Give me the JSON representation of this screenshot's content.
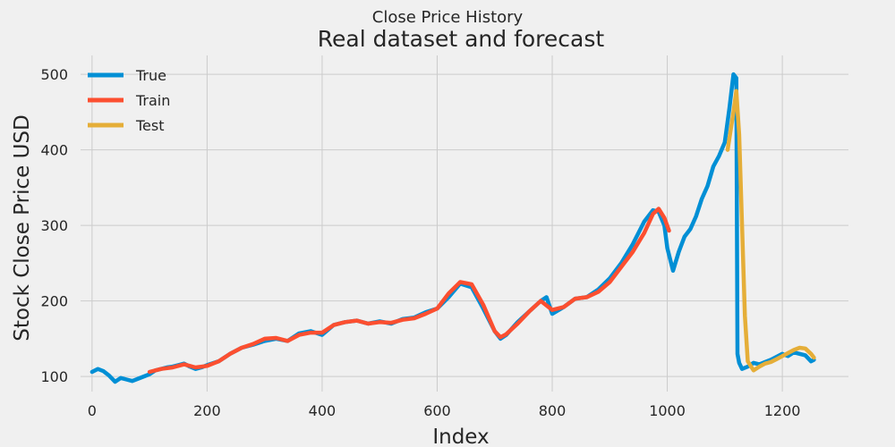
{
  "figure": {
    "suptitle": "Close Price History",
    "title": "Real dataset and forecast"
  },
  "colors": {
    "background": "#f0f0f0",
    "grid": "#cbcbcb",
    "true": "#008fd5",
    "train": "#fc4f30",
    "test": "#e5ae38"
  },
  "chart_data": {
    "type": "line",
    "title": "Real dataset and forecast",
    "suptitle": "Close Price History",
    "xlabel": "Index",
    "ylabel": "Stock Close Price USD",
    "xlim": [
      -20,
      1315
    ],
    "ylim": [
      80,
      525
    ],
    "xticks": [
      0,
      200,
      400,
      600,
      800,
      1000,
      1200
    ],
    "yticks": [
      100,
      200,
      300,
      400,
      500
    ],
    "grid": true,
    "legend_position": "top-left",
    "series": [
      {
        "name": "True",
        "color": "#008fd5",
        "x": [
          0,
          10,
          20,
          30,
          40,
          50,
          60,
          70,
          80,
          90,
          100,
          110,
          120,
          130,
          140,
          150,
          160,
          170,
          180,
          190,
          200,
          220,
          240,
          260,
          280,
          300,
          320,
          340,
          360,
          380,
          400,
          420,
          440,
          460,
          480,
          500,
          520,
          540,
          560,
          580,
          600,
          620,
          640,
          660,
          680,
          700,
          710,
          720,
          740,
          760,
          780,
          790,
          800,
          820,
          840,
          860,
          880,
          900,
          920,
          940,
          960,
          975,
          985,
          995,
          1000,
          1010,
          1020,
          1030,
          1040,
          1050,
          1060,
          1070,
          1080,
          1090,
          1100,
          1108,
          1115,
          1120,
          1122,
          1125,
          1130,
          1140,
          1150,
          1160,
          1170,
          1180,
          1190,
          1200,
          1210,
          1220,
          1230,
          1240,
          1250,
          1255
        ],
        "values": [
          106,
          110,
          107,
          101,
          93,
          98,
          96,
          94,
          97,
          100,
          103,
          108,
          110,
          112,
          113,
          115,
          117,
          113,
          110,
          112,
          115,
          120,
          130,
          138,
          142,
          147,
          150,
          147,
          157,
          160,
          155,
          168,
          172,
          174,
          170,
          173,
          170,
          176,
          178,
          185,
          190,
          205,
          223,
          218,
          190,
          160,
          150,
          155,
          172,
          186,
          200,
          205,
          183,
          192,
          203,
          205,
          215,
          230,
          250,
          275,
          305,
          320,
          318,
          300,
          270,
          240,
          265,
          285,
          295,
          312,
          335,
          352,
          378,
          392,
          410,
          455,
          500,
          495,
          130,
          118,
          110,
          113,
          118,
          116,
          119,
          122,
          126,
          130,
          127,
          132,
          130,
          128,
          120,
          122
        ]
      },
      {
        "name": "Train",
        "color": "#fc4f30",
        "x": [
          100,
          120,
          140,
          160,
          180,
          200,
          220,
          240,
          260,
          280,
          300,
          320,
          340,
          360,
          380,
          400,
          420,
          440,
          460,
          480,
          500,
          520,
          540,
          560,
          580,
          600,
          620,
          640,
          660,
          680,
          700,
          710,
          720,
          740,
          760,
          780,
          800,
          820,
          840,
          860,
          880,
          900,
          920,
          940,
          960,
          975,
          985,
          995,
          1003
        ],
        "values": [
          106,
          110,
          112,
          116,
          112,
          114,
          120,
          130,
          138,
          143,
          150,
          151,
          147,
          155,
          158,
          158,
          168,
          172,
          174,
          170,
          172,
          171,
          175,
          177,
          183,
          190,
          210,
          225,
          222,
          195,
          160,
          152,
          156,
          170,
          186,
          200,
          188,
          192,
          203,
          205,
          212,
          225,
          245,
          265,
          290,
          315,
          322,
          310,
          293
        ]
      },
      {
        "name": "Test",
        "color": "#e5ae38",
        "x": [
          1105,
          1115,
          1120,
          1125,
          1130,
          1135,
          1140,
          1150,
          1160,
          1170,
          1180,
          1190,
          1200,
          1210,
          1220,
          1230,
          1240,
          1250,
          1255
        ],
        "values": [
          400,
          450,
          478,
          420,
          300,
          180,
          120,
          108,
          113,
          117,
          119,
          123,
          127,
          131,
          135,
          138,
          137,
          130,
          125
        ]
      }
    ]
  }
}
